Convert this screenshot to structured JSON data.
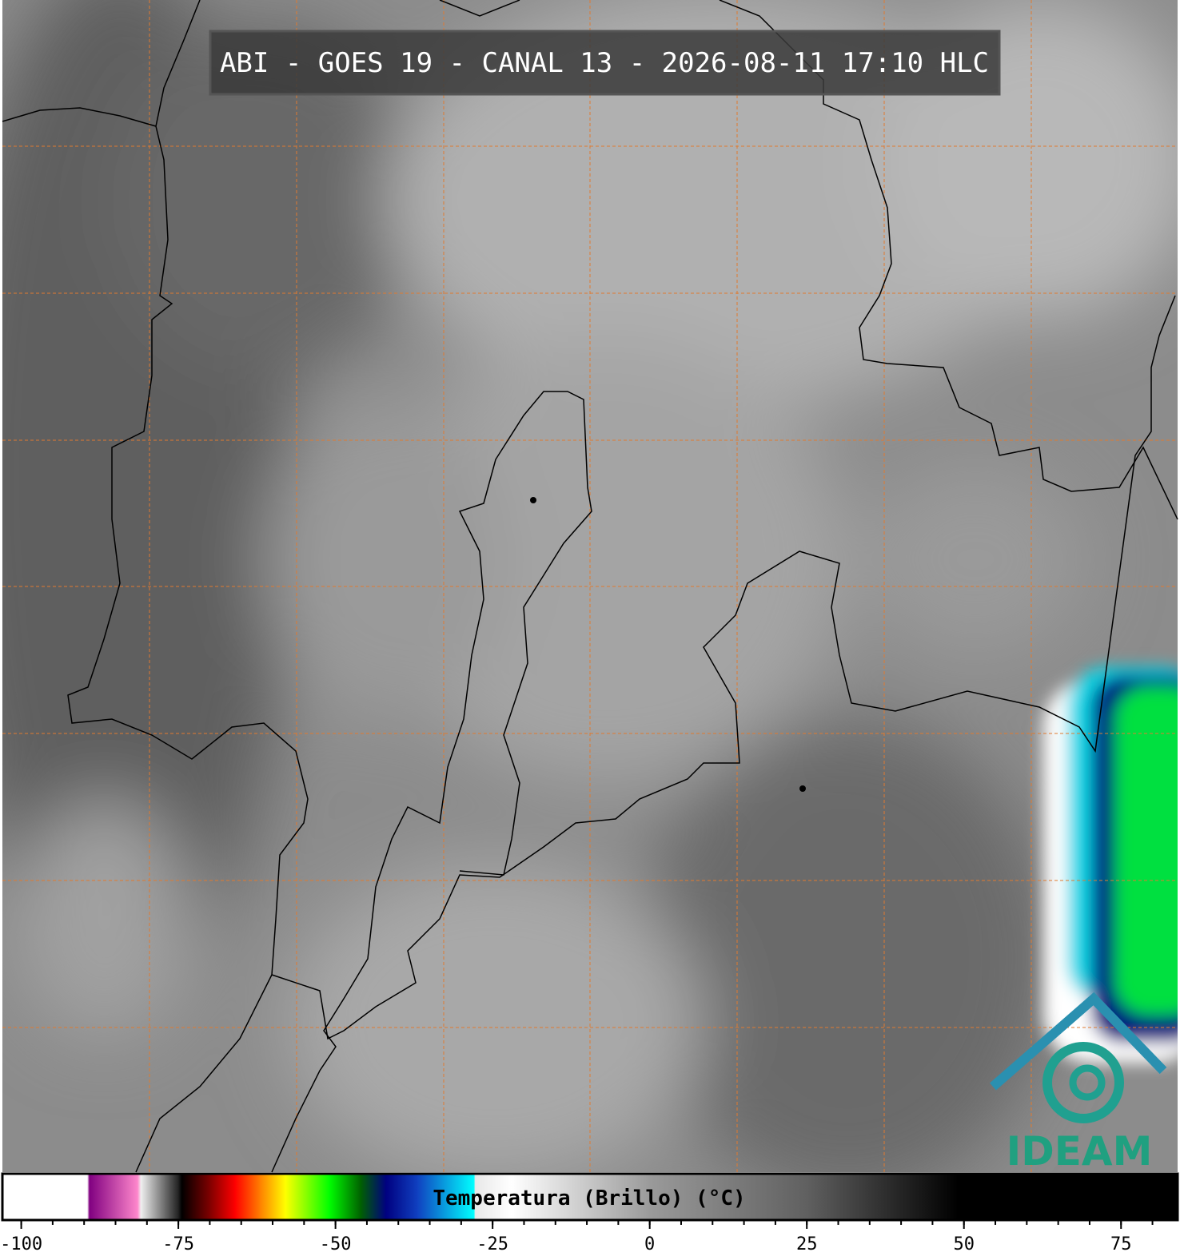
{
  "header": {
    "title": "ABI - GOES 19 - CANAL 13 - 2026-08-11 17:10 HLC"
  },
  "logo": {
    "text": "IDEAM"
  },
  "colorbar": {
    "label": "Temperatura (Brillo) (°C)",
    "range": [
      -103,
      84
    ],
    "ticks": [
      -100,
      -75,
      -50,
      -25,
      0,
      25,
      50,
      75
    ],
    "minor_step": 5,
    "stops": [
      {
        "value": -103,
        "color": "#ffffff"
      },
      {
        "value": -89.5,
        "color": "#ffffff"
      },
      {
        "value": -89.2,
        "color": "#800080"
      },
      {
        "value": -81.5,
        "color": "#ff88cc"
      },
      {
        "value": -81,
        "color": "#f0f0f0"
      },
      {
        "value": -75,
        "color": "#202020"
      },
      {
        "value": -74.5,
        "color": "#000000"
      },
      {
        "value": -70,
        "color": "#800000"
      },
      {
        "value": -66,
        "color": "#ff0000"
      },
      {
        "value": -62,
        "color": "#ff8000"
      },
      {
        "value": -58,
        "color": "#ffff00"
      },
      {
        "value": -51,
        "color": "#00ff00"
      },
      {
        "value": -46,
        "color": "#006000"
      },
      {
        "value": -42,
        "color": "#000080"
      },
      {
        "value": -37,
        "color": "#1040c0"
      },
      {
        "value": -28,
        "color": "#00ffff"
      },
      {
        "value": -27.8,
        "color": "#e8e8e8"
      },
      {
        "value": -22,
        "color": "#ffffff"
      },
      {
        "value": 0,
        "color": "#9a9a9a"
      },
      {
        "value": 25,
        "color": "#606060"
      },
      {
        "value": 49,
        "color": "#000000"
      },
      {
        "value": 84,
        "color": "#000000"
      }
    ]
  }
}
